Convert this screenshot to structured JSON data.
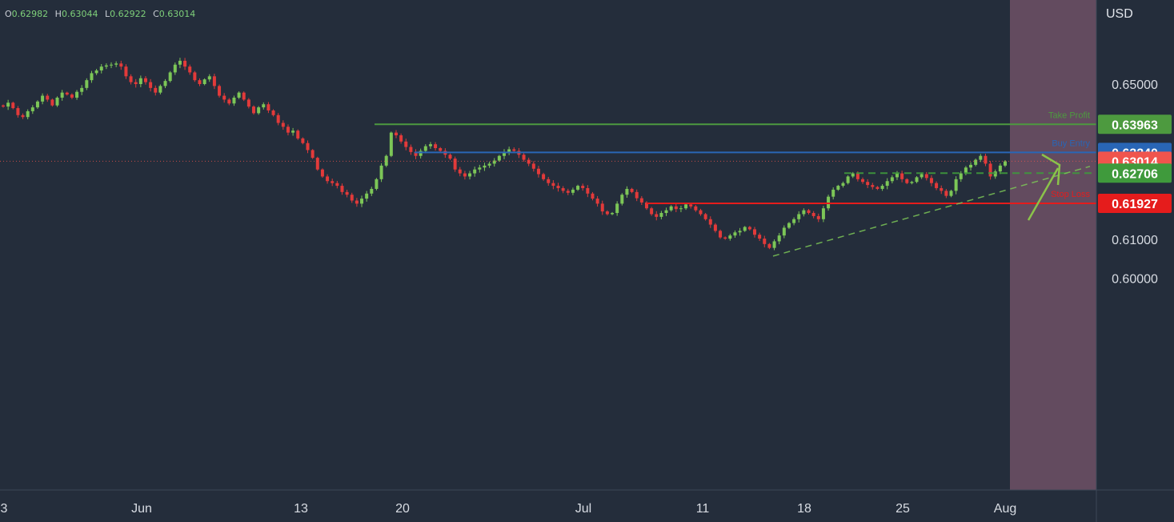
{
  "ohlc": {
    "open_label": "O",
    "open": "0.62982",
    "high_label": "H",
    "high": "0.63044",
    "low_label": "L",
    "low": "0.62922",
    "close_label": "C",
    "close": "0.63014"
  },
  "currency": "USD",
  "colors": {
    "background": "#242d3b",
    "up": "#7cc657",
    "down": "#e23a3a",
    "take_profit": "#4d9a3f",
    "buy_entry": "#2966b6",
    "stop_loss": "#e51c1c",
    "current": "#f0544d",
    "support": "#3f9a3c",
    "future_zone": "#6e5166"
  },
  "chart_data": {
    "type": "candlestick",
    "y_axis": {
      "ticks": [
        "0.65000",
        "0.61000",
        "0.60000"
      ],
      "ylim": [
        0.5975,
        0.6565
      ]
    },
    "x_axis": {
      "ticks": [
        "3",
        "Jun",
        "13",
        "20",
        "Jul",
        "11",
        "18",
        "25",
        "Aug"
      ]
    },
    "levels": [
      {
        "id": "take_profit",
        "label": "Take Profit",
        "value": 0.63963,
        "price_tag": "0.63963"
      },
      {
        "id": "buy_entry",
        "label": "Buy Entry",
        "value": 0.6324,
        "price_tag": "0.63240"
      },
      {
        "id": "stop_loss",
        "label": "Stop Loss",
        "value": 0.61927,
        "price_tag": "0.61927"
      }
    ],
    "support_level": {
      "value": 0.62706,
      "price_tag": "0.62706"
    },
    "current_price": {
      "value": 0.63014,
      "price_tag": "0.63014"
    },
    "trendline": {
      "start_value": 0.6057,
      "end_value": 0.6288
    },
    "closes": [
      0.6442,
      0.6452,
      0.6438,
      0.642,
      0.6415,
      0.643,
      0.644,
      0.6455,
      0.647,
      0.646,
      0.6445,
      0.6465,
      0.6478,
      0.6473,
      0.6465,
      0.648,
      0.649,
      0.651,
      0.6528,
      0.6535,
      0.6545,
      0.6548,
      0.655,
      0.6553,
      0.6545,
      0.652,
      0.6505,
      0.65,
      0.6515,
      0.6505,
      0.649,
      0.6478,
      0.6495,
      0.6508,
      0.653,
      0.655,
      0.656,
      0.6545,
      0.653,
      0.651,
      0.65,
      0.6512,
      0.652,
      0.6495,
      0.647,
      0.646,
      0.645,
      0.6465,
      0.6478,
      0.646,
      0.6442,
      0.6425,
      0.644,
      0.6448,
      0.6432,
      0.642,
      0.64,
      0.639,
      0.6375,
      0.638,
      0.636,
      0.6348,
      0.633,
      0.631,
      0.628,
      0.6262,
      0.625,
      0.6245,
      0.6238,
      0.6222,
      0.6215,
      0.62,
      0.6192,
      0.6205,
      0.6218,
      0.623,
      0.6255,
      0.629,
      0.6315,
      0.6375,
      0.6368,
      0.6352,
      0.6338,
      0.6325,
      0.6315,
      0.6328,
      0.634,
      0.6345,
      0.6335,
      0.6328,
      0.6318,
      0.6308,
      0.628,
      0.627,
      0.6262,
      0.627,
      0.628,
      0.6285,
      0.629,
      0.6295,
      0.6303,
      0.6315,
      0.6325,
      0.6332,
      0.6328,
      0.6318,
      0.6305,
      0.6295,
      0.6282,
      0.6268,
      0.6255,
      0.6245,
      0.6238,
      0.6232,
      0.6225,
      0.622,
      0.6228,
      0.6238,
      0.6232,
      0.6218,
      0.6205,
      0.6192,
      0.6172,
      0.6165,
      0.6168,
      0.6192,
      0.6215,
      0.623,
      0.6222,
      0.6206,
      0.6195,
      0.618,
      0.6165,
      0.6158,
      0.6168,
      0.6175,
      0.6185,
      0.6178,
      0.618,
      0.619,
      0.6185,
      0.6175,
      0.6165,
      0.6152,
      0.6138,
      0.6122,
      0.6105,
      0.6102,
      0.611,
      0.6118,
      0.6122,
      0.6132,
      0.6126,
      0.6112,
      0.6102,
      0.6088,
      0.6078,
      0.6095,
      0.611,
      0.613,
      0.6142,
      0.6152,
      0.6165,
      0.6175,
      0.6168,
      0.616,
      0.6152,
      0.618,
      0.621,
      0.6228,
      0.6238,
      0.6245,
      0.6262,
      0.627,
      0.6255,
      0.6248,
      0.624,
      0.6235,
      0.623,
      0.6238,
      0.625,
      0.626,
      0.627,
      0.6255,
      0.6245,
      0.6248,
      0.626,
      0.6268,
      0.6258,
      0.6245,
      0.6232,
      0.6225,
      0.6212,
      0.6225,
      0.6255,
      0.627,
      0.6285,
      0.6292,
      0.6305,
      0.6315,
      0.6295,
      0.6262,
      0.6275,
      0.629,
      0.6301
    ]
  }
}
